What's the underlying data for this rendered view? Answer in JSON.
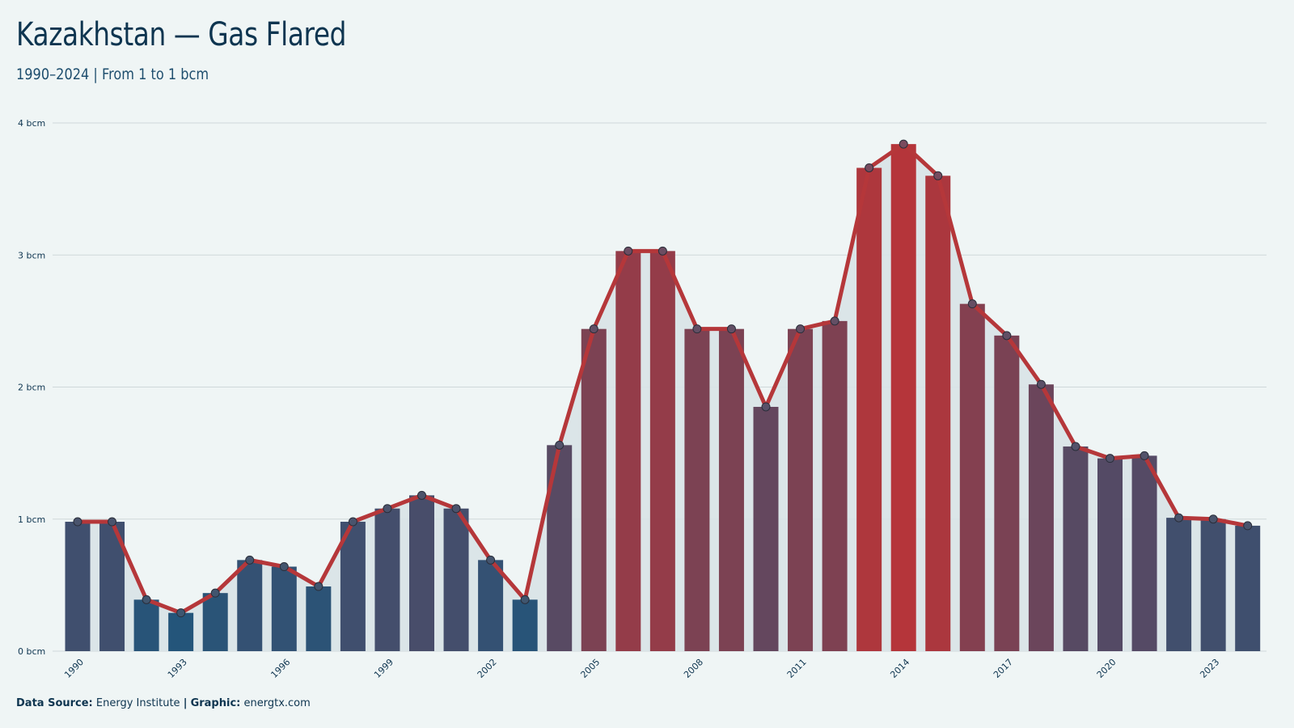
{
  "header": {
    "title": "Kazakhstan — Gas Flared",
    "subtitle": "1990–2024 | From 1 to 1 bcm"
  },
  "footer": {
    "source_label": "Data Source:",
    "source_value": "Energy Institute",
    "separator": "|",
    "graphic_label": "Graphic:",
    "graphic_value": "energtx.com"
  },
  "colors": {
    "background": "#eff5f5",
    "line": "#b5373a",
    "area": "#d8e3e7",
    "low": "#24557a",
    "high": "#b5353a",
    "grid": "#cfd8da",
    "text": "#0e3550"
  },
  "chart_data": {
    "type": "bar",
    "x": [
      1990,
      1991,
      1992,
      1993,
      1994,
      1995,
      1996,
      1997,
      1998,
      1999,
      2000,
      2001,
      2002,
      2003,
      2004,
      2005,
      2006,
      2007,
      2008,
      2009,
      2010,
      2011,
      2012,
      2013,
      2014,
      2015,
      2016,
      2017,
      2018,
      2019,
      2020,
      2021,
      2022,
      2023,
      2024
    ],
    "values": [
      0.98,
      0.98,
      0.39,
      0.29,
      0.44,
      0.69,
      0.64,
      0.49,
      0.98,
      1.08,
      1.18,
      1.08,
      0.69,
      0.39,
      1.56,
      2.44,
      3.03,
      3.03,
      2.44,
      2.44,
      1.85,
      2.44,
      2.5,
      3.66,
      3.84,
      3.6,
      2.63,
      2.39,
      2.02,
      1.55,
      1.46,
      1.48,
      1.01,
      1.0,
      0.95
    ],
    "line_overlay": true,
    "ylim": [
      0,
      4
    ],
    "y_ticks": [
      0,
      1,
      2,
      3,
      4
    ],
    "y_tick_labels": [
      "0 bcm",
      "1 bcm",
      "2 bcm",
      "3 bcm",
      "4 bcm"
    ],
    "x_tick_labels": [
      "1990",
      "1993",
      "1996",
      "1999",
      "2002",
      "2005",
      "2008",
      "2011",
      "2014",
      "2017",
      "2020",
      "2023"
    ],
    "grid": true,
    "legend": "none"
  }
}
